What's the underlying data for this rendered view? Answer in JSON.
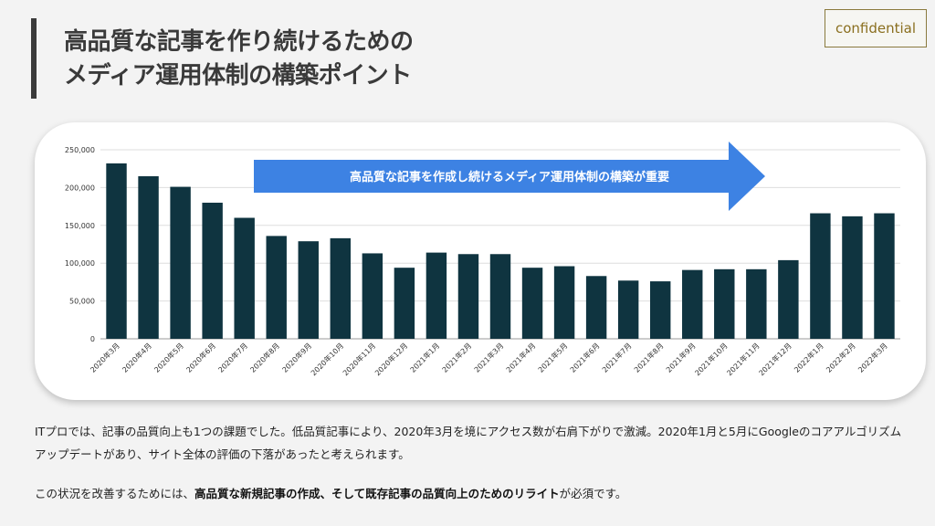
{
  "header": {
    "title_line1": "高品質な記事を作り続けるための",
    "title_line2": "メディア運用体制の構築ポイント",
    "badge": "confidential"
  },
  "chart_data": {
    "type": "bar",
    "categories": [
      "2020年3月",
      "2020年4月",
      "2020年5月",
      "2020年6月",
      "2020年7月",
      "2020年8月",
      "2020年9月",
      "2020年10月",
      "2020年11月",
      "2020年12月",
      "2021年1月",
      "2021年2月",
      "2021年3月",
      "2021年4月",
      "2021年5月",
      "2021年6月",
      "2021年7月",
      "2021年8月",
      "2021年9月",
      "2021年10月",
      "2021年11月",
      "2021年12月",
      "2022年1月",
      "2022年2月",
      "2022年3月"
    ],
    "values": [
      232000,
      215000,
      201000,
      180000,
      160000,
      136000,
      129000,
      133000,
      113000,
      94000,
      114000,
      112000,
      112000,
      94000,
      96000,
      83000,
      77000,
      76000,
      91000,
      92000,
      92000,
      104000,
      166000,
      162000,
      166000
    ],
    "ylim": [
      0,
      250000
    ],
    "yticks": [
      "0",
      "50,000",
      "100,000",
      "150,000",
      "200,000",
      "250,000"
    ],
    "ytick_values": [
      0,
      50000,
      100000,
      150000,
      200000,
      250000
    ],
    "grid": true,
    "bar_color": "#0f3440",
    "annotation": {
      "text": "高品質な記事を作成し続けるメディア運用体制の構築が重要",
      "color": "#3d82e3"
    }
  },
  "body": {
    "paragraph1": "ITプロでは、記事の品質向上も1つの課題でした。低品質記事により、2020年3月を境にアクセス数が右肩下がりで激減。2020年1月と5月にGoogleのコアアルゴリズムアップデートがあり、サイト全体の評価の下落があったと考えられます。",
    "paragraph2_pre": "この状況を改善するためには、",
    "paragraph2_bold": "高品質な新規記事の作成、そして既存記事の品質向上のためのリライト",
    "paragraph2_post": "が必須です。"
  }
}
